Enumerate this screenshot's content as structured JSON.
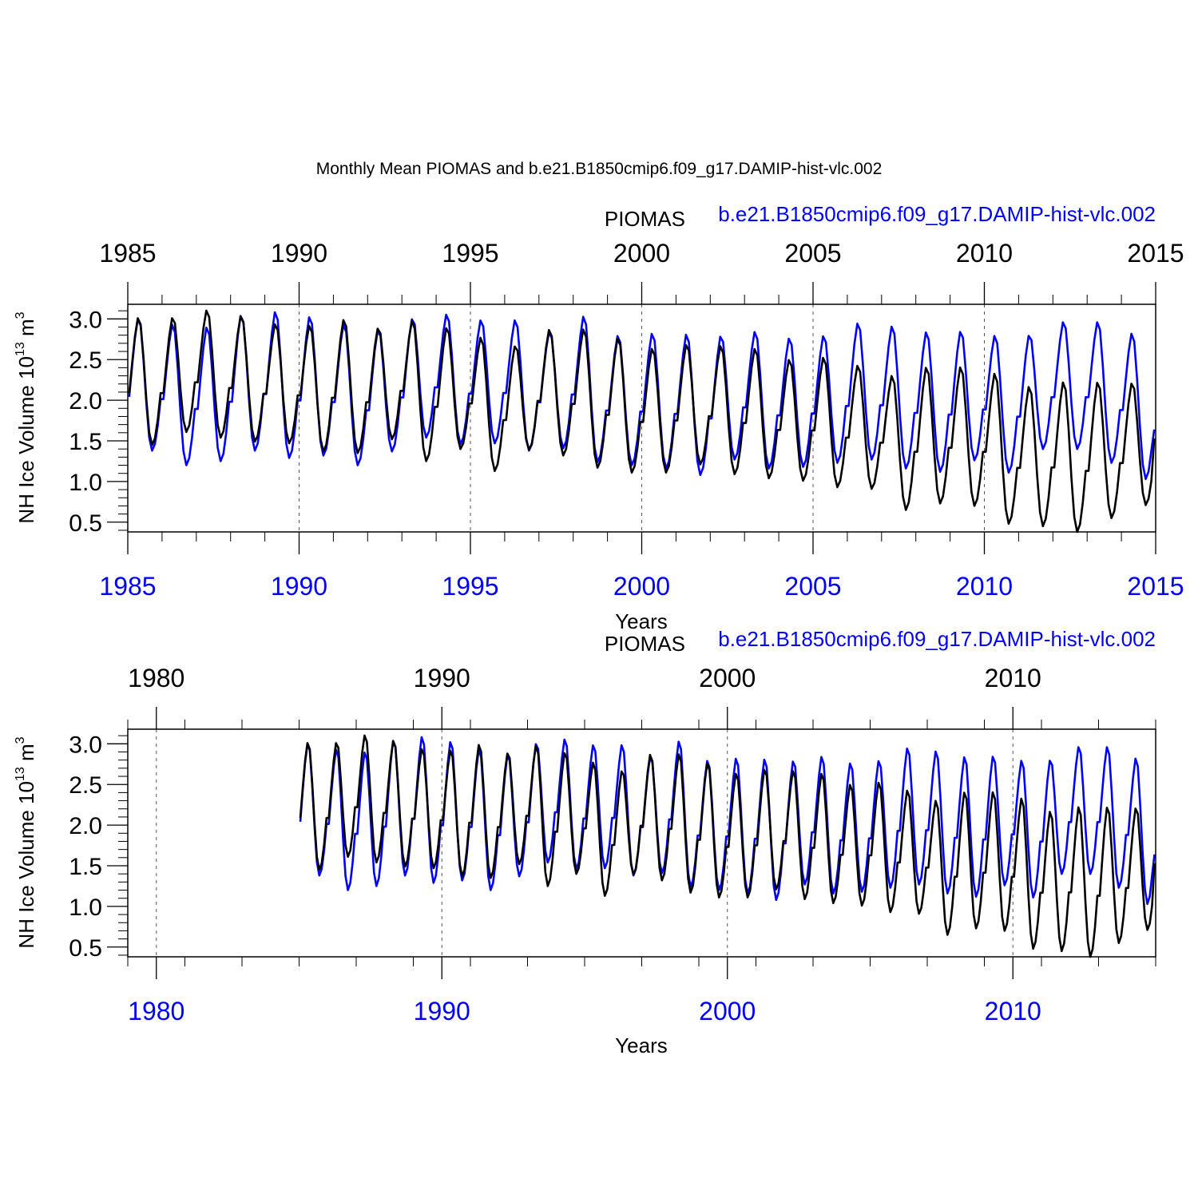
{
  "figure_title": "Monthly Mean PIOMAS and b.e21.B1850cmip6.f09_g17.DAMIP-hist-vlc.002",
  "colors": {
    "piomas": "#000000",
    "model": "#0000ff",
    "axis": "#000000"
  },
  "chart_data": [
    {
      "type": "line",
      "name": "panel-1985-2015",
      "left_label": "PIOMAS",
      "right_label": "b.e21.B1850cmip6.f09_g17.DAMIP-hist-vlc.002",
      "ylabel": "NH Ice Volume 10",
      "ylabel_sup": "13",
      "ylabel_unit": " m",
      "ylabel_unit_sup": "3",
      "xlabel": "Years",
      "xlim": [
        1985,
        2015
      ],
      "ylim": [
        0.38,
        3.18
      ],
      "yticks": [
        "0.5",
        "1.0",
        "1.5",
        "2.0",
        "2.5",
        "3.0"
      ],
      "xticks_top": [
        "1985",
        "1990",
        "1995",
        "2000",
        "2005",
        "2010",
        "2015"
      ],
      "xticks_bottom": [
        "1985",
        "1990",
        "1995",
        "2000",
        "2005",
        "2010",
        "2015"
      ],
      "major_step": 5,
      "minor_step": 1,
      "grid": "dashed vertical at major ticks",
      "series": [
        {
          "name": "PIOMAS",
          "start_year": 1985,
          "annual_max": [
            3.09,
            3.09,
            3.18,
            3.11,
            3.01,
            2.99,
            3.07,
            2.96,
            3.05,
            2.97,
            2.84,
            2.74,
            2.94,
            2.95,
            2.84,
            2.71,
            2.76,
            2.74,
            2.71,
            2.57,
            2.6,
            2.5,
            2.37,
            2.49,
            2.49,
            2.41,
            2.25,
            2.31,
            2.31,
            2.29
          ],
          "annual_min": [
            1.45,
            1.61,
            1.54,
            1.49,
            1.47,
            1.37,
            1.35,
            1.52,
            1.25,
            1.4,
            1.13,
            1.39,
            1.32,
            1.17,
            1.11,
            1.11,
            1.21,
            1.09,
            1.04,
            1.01,
            0.93,
            0.91,
            0.65,
            0.73,
            0.7,
            0.48,
            0.45,
            0.38,
            0.55,
            0.71
          ],
          "end_value": 1.53
        },
        {
          "name": "b.e21.B1850cmip6.f09_g17.DAMIP-hist-vlc.002",
          "start_year": 1985,
          "annual_max": [
            3.08,
            3.01,
            2.98,
            3.13,
            3.17,
            3.11,
            3.01,
            2.94,
            3.08,
            3.13,
            3.06,
            3.06,
            2.91,
            3.11,
            2.87,
            2.9,
            2.89,
            2.87,
            2.92,
            2.84,
            2.87,
            3.03,
            2.99,
            2.92,
            2.93,
            2.87,
            2.88,
            3.04,
            3.04,
            2.9
          ],
          "annual_min": [
            1.38,
            1.2,
            1.25,
            1.38,
            1.29,
            1.32,
            1.2,
            1.37,
            1.54,
            1.46,
            1.47,
            1.38,
            1.41,
            1.24,
            1.2,
            1.16,
            1.08,
            1.27,
            1.16,
            1.18,
            1.23,
            1.27,
            1.16,
            1.12,
            1.26,
            1.11,
            1.4,
            1.4,
            1.23,
            1.03
          ],
          "end_value": 1.64
        }
      ]
    },
    {
      "type": "line",
      "name": "panel-1979-2015",
      "left_label": "PIOMAS",
      "right_label": "b.e21.B1850cmip6.f09_g17.DAMIP-hist-vlc.002",
      "ylabel": "NH Ice Volume 10",
      "ylabel_sup": "13",
      "ylabel_unit": " m",
      "ylabel_unit_sup": "3",
      "xlabel": "Years",
      "xlim": [
        1979,
        2015
      ],
      "ylim": [
        0.38,
        3.18
      ],
      "yticks": [
        "0.5",
        "1.0",
        "1.5",
        "2.0",
        "2.5",
        "3.0"
      ],
      "xticks_top": [
        "1980",
        "1990",
        "2000",
        "2010"
      ],
      "xticks_bottom": [
        "1980",
        "1990",
        "2000",
        "2010"
      ],
      "major_start": 1980,
      "major_step": 10,
      "minor_step": 2,
      "grid": "dashed vertical at major ticks",
      "series_ref": "same series as panel-1985-2015"
    }
  ]
}
